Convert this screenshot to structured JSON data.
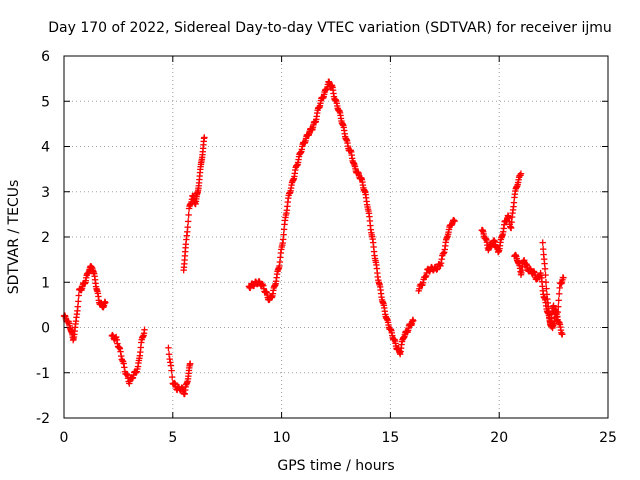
{
  "chart_data": {
    "type": "scatter",
    "title": "Day 170 of 2022, Sidereal Day-to-day VTEC variation (SDTVAR) for receiver ijmu",
    "xlabel": "GPS time / hours",
    "ylabel": "SDTVAR / TECUs",
    "xlim": [
      0,
      25
    ],
    "ylim": [
      -2,
      6
    ],
    "xticks": [
      "0",
      "5",
      "10",
      "15",
      "20",
      "25"
    ],
    "yticks": [
      "-2",
      "-1",
      "0",
      "1",
      "2",
      "3",
      "4",
      "5",
      "6"
    ],
    "grid": true,
    "marker": "plus",
    "color": "#ff0000",
    "series": [
      {
        "name": "SDTVAR",
        "segments": [
          [
            [
              0.0,
              0.25
            ],
            [
              0.15,
              0.15
            ],
            [
              0.3,
              0.0
            ],
            [
              0.42,
              -0.28
            ],
            [
              0.55,
              0.1
            ],
            [
              0.7,
              0.8
            ],
            [
              0.85,
              0.9
            ],
            [
              1.0,
              1.05
            ],
            [
              1.15,
              1.28
            ],
            [
              1.3,
              1.35
            ],
            [
              1.45,
              1.0
            ],
            [
              1.6,
              0.6
            ],
            [
              1.75,
              0.45
            ],
            [
              1.9,
              0.55
            ]
          ],
          [
            [
              2.2,
              -0.2
            ],
            [
              2.4,
              -0.25
            ],
            [
              2.6,
              -0.55
            ],
            [
              2.8,
              -0.95
            ],
            [
              3.0,
              -1.2
            ],
            [
              3.2,
              -1.05
            ],
            [
              3.4,
              -0.9
            ],
            [
              3.55,
              -0.35
            ],
            [
              3.7,
              -0.05
            ]
          ],
          [
            [
              4.8,
              -0.45
            ],
            [
              5.0,
              -1.2
            ],
            [
              5.2,
              -1.35
            ],
            [
              5.4,
              -1.35
            ],
            [
              5.55,
              -1.45
            ],
            [
              5.7,
              -1.1
            ],
            [
              5.8,
              -0.8
            ]
          ],
          [
            [
              5.5,
              1.3
            ],
            [
              5.6,
              1.8
            ],
            [
              5.75,
              2.6
            ],
            [
              5.9,
              2.9
            ],
            [
              6.05,
              2.75
            ],
            [
              6.15,
              3.0
            ],
            [
              6.25,
              3.4
            ],
            [
              6.35,
              3.8
            ],
            [
              6.45,
              4.2
            ]
          ],
          [
            [
              8.5,
              0.9
            ],
            [
              8.7,
              0.95
            ],
            [
              8.9,
              1.0
            ],
            [
              9.1,
              0.95
            ],
            [
              9.3,
              0.75
            ],
            [
              9.45,
              0.6
            ],
            [
              9.6,
              0.75
            ],
            [
              9.75,
              1.05
            ],
            [
              9.9,
              1.4
            ],
            [
              10.05,
              1.9
            ],
            [
              10.2,
              2.5
            ],
            [
              10.35,
              2.95
            ],
            [
              10.5,
              3.2
            ],
            [
              10.65,
              3.5
            ],
            [
              10.8,
              3.75
            ],
            [
              10.95,
              4.0
            ],
            [
              11.1,
              4.15
            ],
            [
              11.25,
              4.3
            ],
            [
              11.4,
              4.4
            ],
            [
              11.55,
              4.55
            ],
            [
              11.7,
              4.85
            ],
            [
              11.85,
              5.05
            ],
            [
              12.0,
              5.2
            ],
            [
              12.15,
              5.4
            ],
            [
              12.3,
              5.35
            ],
            [
              12.45,
              5.05
            ],
            [
              12.6,
              4.85
            ],
            [
              12.75,
              4.6
            ],
            [
              12.9,
              4.3
            ],
            [
              13.05,
              4.0
            ],
            [
              13.2,
              3.85
            ],
            [
              13.35,
              3.55
            ],
            [
              13.5,
              3.4
            ],
            [
              13.65,
              3.3
            ],
            [
              13.8,
              3.05
            ],
            [
              13.95,
              2.7
            ],
            [
              14.1,
              2.2
            ],
            [
              14.25,
              1.7
            ],
            [
              14.4,
              1.2
            ],
            [
              14.55,
              0.8
            ],
            [
              14.7,
              0.45
            ],
            [
              14.85,
              0.15
            ],
            [
              15.0,
              -0.05
            ],
            [
              15.15,
              -0.25
            ],
            [
              15.3,
              -0.45
            ],
            [
              15.45,
              -0.55
            ],
            [
              15.6,
              -0.2
            ],
            [
              15.75,
              -0.1
            ],
            [
              15.9,
              0.05
            ],
            [
              16.05,
              0.15
            ]
          ],
          [
            [
              16.3,
              0.85
            ],
            [
              16.5,
              1.0
            ],
            [
              16.7,
              1.25
            ],
            [
              16.9,
              1.3
            ],
            [
              17.1,
              1.3
            ],
            [
              17.3,
              1.4
            ],
            [
              17.5,
              1.75
            ],
            [
              17.65,
              2.1
            ],
            [
              17.8,
              2.3
            ],
            [
              17.95,
              2.35
            ]
          ],
          [
            [
              19.2,
              2.15
            ],
            [
              19.35,
              2.0
            ],
            [
              19.5,
              1.75
            ],
            [
              19.65,
              1.85
            ],
            [
              19.8,
              1.9
            ],
            [
              19.95,
              1.65
            ],
            [
              20.1,
              1.95
            ],
            [
              20.25,
              2.3
            ],
            [
              20.4,
              2.45
            ],
            [
              20.55,
              2.2
            ],
            [
              20.7,
              2.9
            ],
            [
              20.85,
              3.2
            ],
            [
              21.0,
              3.4
            ]
          ],
          [
            [
              20.7,
              1.6
            ],
            [
              20.85,
              1.5
            ],
            [
              21.0,
              1.2
            ],
            [
              21.15,
              1.5
            ],
            [
              21.3,
              1.3
            ],
            [
              21.45,
              1.25
            ],
            [
              21.6,
              1.2
            ],
            [
              21.75,
              1.05
            ],
            [
              21.9,
              1.2
            ],
            [
              22.05,
              0.7
            ],
            [
              22.2,
              0.4
            ],
            [
              22.35,
              0.1
            ],
            [
              22.5,
              0.5
            ],
            [
              22.65,
              0.15
            ],
            [
              22.8,
              0.95
            ],
            [
              22.95,
              1.1
            ]
          ],
          [
            [
              22.0,
              1.9
            ],
            [
              22.15,
              1.0
            ],
            [
              22.3,
              0.2
            ],
            [
              22.45,
              -0.05
            ],
            [
              22.6,
              0.35
            ],
            [
              22.75,
              0.1
            ],
            [
              22.9,
              -0.15
            ]
          ]
        ]
      }
    ]
  }
}
